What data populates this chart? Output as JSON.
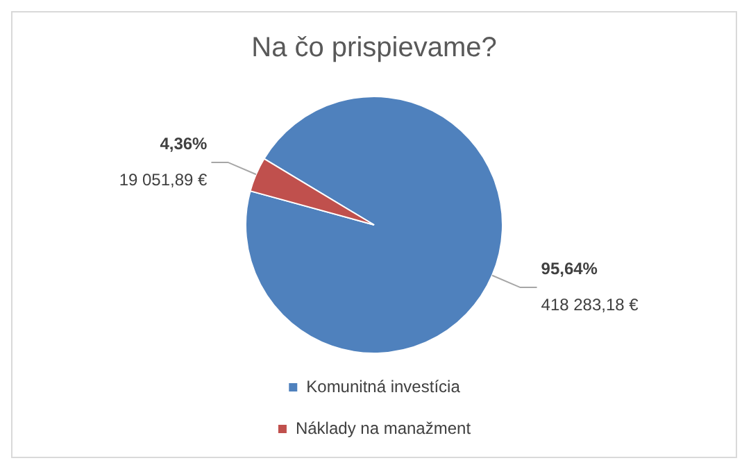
{
  "chart_data": {
    "type": "pie",
    "title": "Na čo prispievame?",
    "categories": [
      "Komunitná investícia",
      "Náklady na manažment"
    ],
    "values": [
      418283.18,
      19051.89
    ],
    "colors": [
      "#4f81bd",
      "#c0504d"
    ],
    "value_labels": [
      "95,64%\n418 283,18 €",
      "4,36%\n19 051,89 €"
    ],
    "legend": "bottom"
  }
}
